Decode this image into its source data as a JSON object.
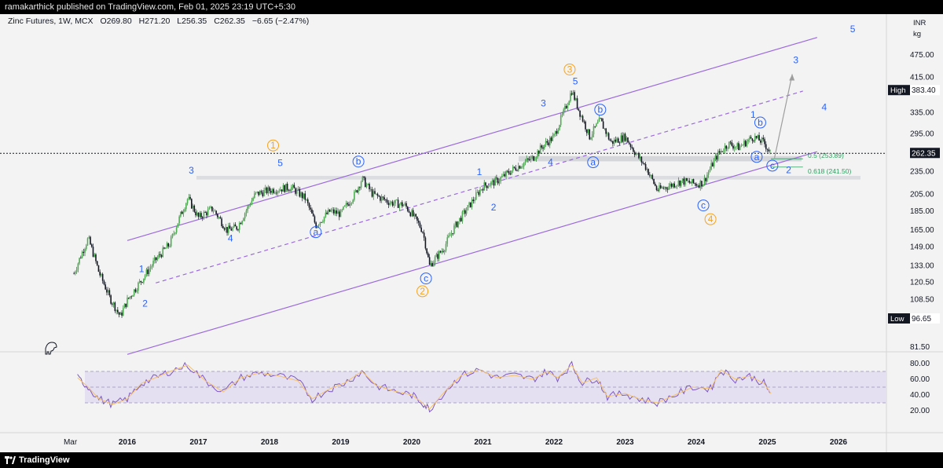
{
  "header": {
    "publisher": "ramakarthick published on TradingView.com, Feb 01, 2025 23:19 UTC+5:30"
  },
  "legend": {
    "symbol": "Zinc Futures, 1W, MCX",
    "open": "O269.80",
    "high": "H271.20",
    "low": "L256.35",
    "close": "C262.35",
    "change": "−6.65 (−2.47%)"
  },
  "footer": {
    "brand": "TradingView"
  },
  "colors": {
    "up": "#26a69a",
    "up_body": "#4caf50",
    "down": "#131722",
    "channel": "#9c6ade",
    "wave_blue": "#2962ff",
    "wave_orange": "#f7a21b",
    "rsi": "#7e57c2",
    "rsi_ma": "#f5c26b"
  },
  "chart_data": {
    "type": "candlestick",
    "price_axis": {
      "unit_top": "INR",
      "unit_bottom": "kg",
      "scale": "log",
      "ticks": [
        "475.00",
        "415.00",
        "335.00",
        "295.00",
        "235.00",
        "205.00",
        "185.00",
        "165.00",
        "149.00",
        "133.00",
        "120.50",
        "108.50",
        "96.65",
        "81.50"
      ],
      "tick_values": [
        475,
        415,
        335,
        295,
        235,
        205,
        185,
        165,
        149,
        133,
        120.5,
        108.5,
        96.65,
        81.5
      ],
      "high_label": "High",
      "high_value": "383.40",
      "low_label": "Low",
      "low_value": "96.65",
      "last_value": "262.35"
    },
    "time_axis": {
      "labels": [
        "Mar",
        "2016",
        "2017",
        "2018",
        "2019",
        "2020",
        "2021",
        "2022",
        "2023",
        "2024",
        "2025",
        "2026"
      ]
    },
    "price_path": [
      [
        2015.25,
        127
      ],
      [
        2015.45,
        157
      ],
      [
        2015.6,
        128
      ],
      [
        2015.75,
        110
      ],
      [
        2015.9,
        98
      ],
      [
        2016.0,
        108
      ],
      [
        2016.2,
        122
      ],
      [
        2016.4,
        138
      ],
      [
        2016.6,
        152
      ],
      [
        2016.85,
        200
      ],
      [
        2017.0,
        178
      ],
      [
        2017.2,
        188
      ],
      [
        2017.4,
        165
      ],
      [
        2017.55,
        168
      ],
      [
        2017.8,
        205
      ],
      [
        2018.0,
        210
      ],
      [
        2018.15,
        212
      ],
      [
        2018.3,
        214
      ],
      [
        2018.5,
        200
      ],
      [
        2018.65,
        170
      ],
      [
        2018.85,
        185
      ],
      [
        2019.0,
        182
      ],
      [
        2019.2,
        205
      ],
      [
        2019.3,
        225
      ],
      [
        2019.45,
        205
      ],
      [
        2019.7,
        195
      ],
      [
        2019.9,
        192
      ],
      [
        2020.0,
        182
      ],
      [
        2020.15,
        165
      ],
      [
        2020.25,
        133
      ],
      [
        2020.45,
        148
      ],
      [
        2020.6,
        168
      ],
      [
        2020.8,
        190
      ],
      [
        2021.0,
        215
      ],
      [
        2021.2,
        222
      ],
      [
        2021.45,
        240
      ],
      [
        2021.7,
        255
      ],
      [
        2021.85,
        275
      ],
      [
        2022.0,
        290
      ],
      [
        2022.15,
        340
      ],
      [
        2022.25,
        383
      ],
      [
        2022.35,
        340
      ],
      [
        2022.5,
        290
      ],
      [
        2022.65,
        320
      ],
      [
        2022.8,
        280
      ],
      [
        2023.0,
        290
      ],
      [
        2023.15,
        262
      ],
      [
        2023.3,
        240
      ],
      [
        2023.45,
        210
      ],
      [
        2023.6,
        215
      ],
      [
        2023.8,
        222
      ],
      [
        2024.0,
        218
      ],
      [
        2024.1,
        220
      ],
      [
        2024.3,
        260
      ],
      [
        2024.45,
        278
      ],
      [
        2024.6,
        272
      ],
      [
        2024.8,
        290
      ],
      [
        2024.95,
        280
      ],
      [
        2025.05,
        262
      ]
    ],
    "channel_lines": [
      {
        "name": "upper",
        "from": [
          2016.0,
          155
        ],
        "to": [
          2025.7,
          528
        ],
        "style": "solid"
      },
      {
        "name": "lower",
        "from": [
          2016.0,
          78
        ],
        "to": [
          2025.7,
          265
        ],
        "style": "solid"
      },
      {
        "name": "mid",
        "from": [
          2016.4,
          120
        ],
        "to": [
          2025.5,
          382
        ],
        "style": "dashed"
      }
    ],
    "fib_levels": [
      {
        "label": "0.5 (253.89)",
        "value": 253.89
      },
      {
        "label": "0.618 (241.50)",
        "value": 241.5
      }
    ],
    "projection": {
      "from": [
        2025.1,
        255
      ],
      "to": [
        2025.35,
        423
      ]
    },
    "wave_labels": [
      {
        "text": "1",
        "x": 2016.2,
        "v": 128,
        "c": "blue",
        "circled": false
      },
      {
        "text": "2",
        "x": 2016.25,
        "v": 104,
        "c": "blue",
        "circled": false
      },
      {
        "text": "3",
        "x": 2016.9,
        "v": 232,
        "c": "blue",
        "circled": false
      },
      {
        "text": "4",
        "x": 2017.45,
        "v": 154,
        "c": "blue",
        "circled": false
      },
      {
        "text": "5",
        "x": 2018.15,
        "v": 243,
        "c": "blue",
        "circled": false
      },
      {
        "text": "1",
        "x": 2018.05,
        "v": 270,
        "c": "orange",
        "circled": true
      },
      {
        "text": "a",
        "x": 2018.65,
        "v": 160,
        "c": "blue",
        "circled": true
      },
      {
        "text": "b",
        "x": 2019.25,
        "v": 245,
        "c": "blue",
        "circled": true
      },
      {
        "text": "c",
        "x": 2020.2,
        "v": 121,
        "c": "blue",
        "circled": true
      },
      {
        "text": "2",
        "x": 2020.15,
        "v": 112,
        "c": "orange",
        "circled": true
      },
      {
        "text": "1",
        "x": 2020.95,
        "v": 230,
        "c": "blue",
        "circled": false
      },
      {
        "text": "2",
        "x": 2021.15,
        "v": 186,
        "c": "blue",
        "circled": false
      },
      {
        "text": "3",
        "x": 2021.85,
        "v": 348,
        "c": "blue",
        "circled": false
      },
      {
        "text": "4",
        "x": 2021.95,
        "v": 244,
        "c": "blue",
        "circled": false
      },
      {
        "text": "3",
        "x": 2022.22,
        "v": 427,
        "c": "orange",
        "circled": true
      },
      {
        "text": "5",
        "x": 2022.3,
        "v": 398,
        "c": "blue",
        "circled": false
      },
      {
        "text": "b",
        "x": 2022.65,
        "v": 335,
        "c": "blue",
        "circled": true
      },
      {
        "text": "a",
        "x": 2022.55,
        "v": 244,
        "c": "blue",
        "circled": true
      },
      {
        "text": "c",
        "x": 2024.1,
        "v": 188,
        "c": "blue",
        "circled": true
      },
      {
        "text": "4",
        "x": 2024.2,
        "v": 173,
        "c": "orange",
        "circled": true
      },
      {
        "text": "1",
        "x": 2024.8,
        "v": 325,
        "c": "blue",
        "circled": false
      },
      {
        "text": "b",
        "x": 2024.9,
        "v": 310,
        "c": "blue",
        "circled": true
      },
      {
        "text": "a",
        "x": 2024.85,
        "v": 252,
        "c": "blue",
        "circled": true
      },
      {
        "text": "c",
        "x": 2025.07,
        "v": 239,
        "c": "blue",
        "circled": true
      },
      {
        "text": "2",
        "x": 2025.3,
        "v": 233,
        "c": "blue",
        "circled": false
      },
      {
        "text": "3",
        "x": 2025.4,
        "v": 452,
        "c": "blue",
        "circled": false
      },
      {
        "text": "4",
        "x": 2025.8,
        "v": 340,
        "c": "blue",
        "circled": false
      },
      {
        "text": "5",
        "x": 2026.2,
        "v": 545,
        "c": "blue",
        "circled": false
      }
    ],
    "rsi": {
      "ticks": [
        "80.00",
        "60.00",
        "40.00",
        "20.00"
      ],
      "tick_values": [
        80,
        60,
        40,
        20
      ],
      "upper_band": 70,
      "lower_band": 30,
      "mid": 50,
      "path": [
        [
          2015.3,
          62
        ],
        [
          2015.45,
          50
        ],
        [
          2015.6,
          35
        ],
        [
          2015.8,
          28
        ],
        [
          2016.0,
          35
        ],
        [
          2016.2,
          55
        ],
        [
          2016.4,
          62
        ],
        [
          2016.6,
          70
        ],
        [
          2016.85,
          78
        ],
        [
          2017.1,
          58
        ],
        [
          2017.35,
          44
        ],
        [
          2017.6,
          62
        ],
        [
          2017.85,
          68
        ],
        [
          2018.1,
          65
        ],
        [
          2018.4,
          58
        ],
        [
          2018.6,
          35
        ],
        [
          2018.85,
          48
        ],
        [
          2019.05,
          55
        ],
        [
          2019.3,
          70
        ],
        [
          2019.5,
          52
        ],
        [
          2019.75,
          45
        ],
        [
          2020.0,
          40
        ],
        [
          2020.15,
          30
        ],
        [
          2020.25,
          22
        ],
        [
          2020.5,
          48
        ],
        [
          2020.7,
          65
        ],
        [
          2020.95,
          72
        ],
        [
          2021.2,
          62
        ],
        [
          2021.45,
          65
        ],
        [
          2021.7,
          60
        ],
        [
          2021.9,
          70
        ],
        [
          2022.05,
          62
        ],
        [
          2022.25,
          78
        ],
        [
          2022.4,
          55
        ],
        [
          2022.6,
          62
        ],
        [
          2022.75,
          38
        ],
        [
          2023.0,
          42
        ],
        [
          2023.2,
          35
        ],
        [
          2023.45,
          30
        ],
        [
          2023.7,
          40
        ],
        [
          2023.95,
          50
        ],
        [
          2024.2,
          48
        ],
        [
          2024.35,
          72
        ],
        [
          2024.55,
          60
        ],
        [
          2024.75,
          64
        ],
        [
          2024.95,
          55
        ],
        [
          2025.05,
          42
        ]
      ]
    }
  }
}
